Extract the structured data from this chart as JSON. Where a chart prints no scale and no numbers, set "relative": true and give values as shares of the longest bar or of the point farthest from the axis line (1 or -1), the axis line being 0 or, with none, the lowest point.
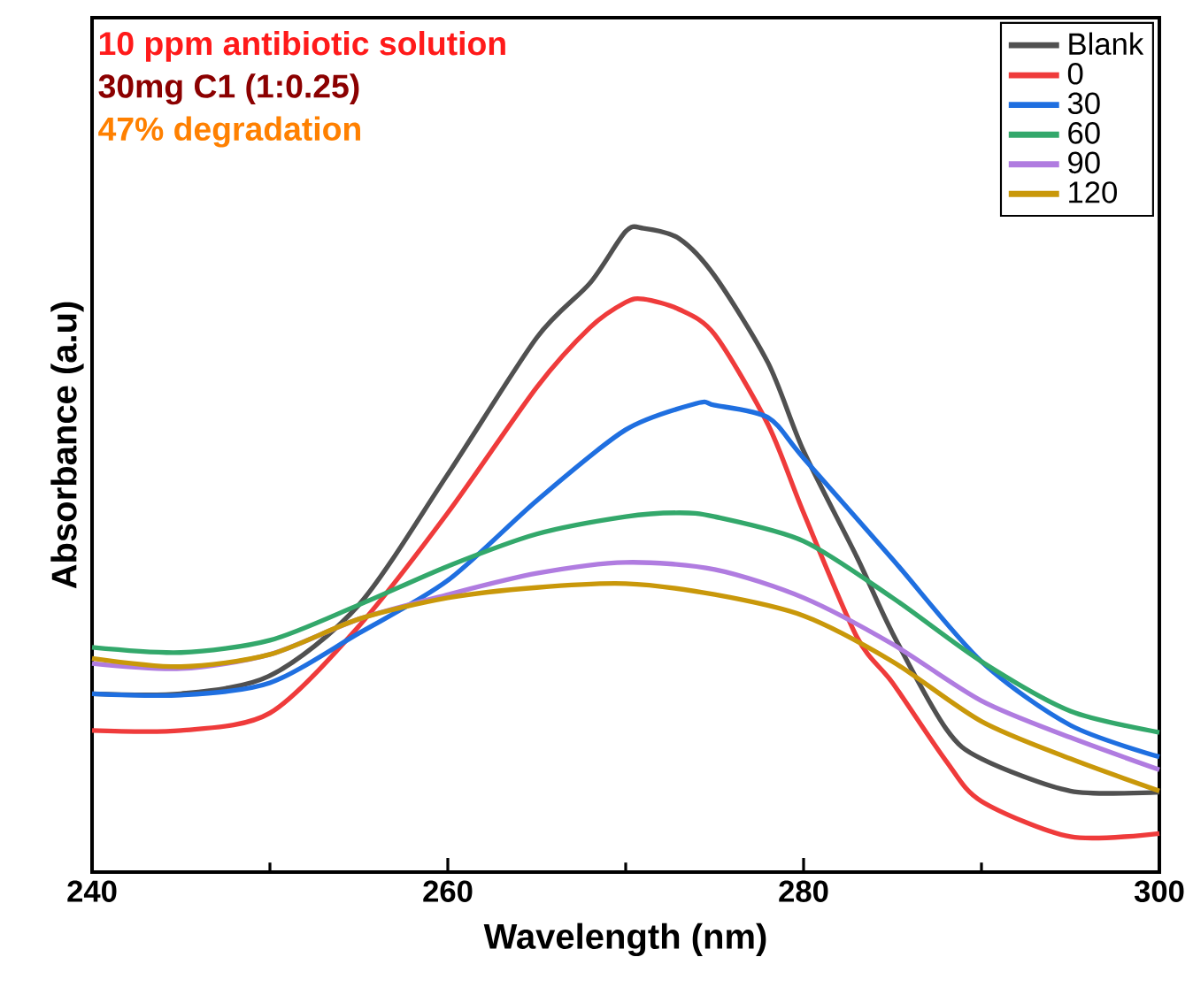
{
  "chart_data": {
    "type": "line",
    "relative": true,
    "xlabel": "Wavelength (nm)",
    "ylabel": "Absorbance (a.u)",
    "annotations": [
      "10 ppm antibiotic solution",
      "30mg C1 (1:0.25)",
      "47% degradation"
    ],
    "xlim": [
      240,
      300
    ],
    "xticks": [
      240,
      {
        "value": 250,
        "label": null
      },
      260,
      {
        "value": 270,
        "label": null
      },
      280,
      {
        "value": 290,
        "label": null
      },
      300
    ],
    "legend": "top right",
    "line_style": "solid",
    "marker": "none",
    "grid": false,
    "series": [
      {
        "name": "Blank",
        "color": "#505050",
        "x": [
          240,
          245,
          250,
          255,
          260,
          265,
          268,
          270,
          271,
          273,
          275,
          278,
          280,
          283,
          285,
          288,
          290,
          295,
          300
        ],
        "values": [
          0.277,
          0.277,
          0.305,
          0.415,
          0.618,
          0.83,
          0.915,
          0.995,
          1.0,
          0.984,
          0.926,
          0.791,
          0.654,
          0.489,
          0.371,
          0.223,
          0.176,
          0.126,
          0.124
        ]
      },
      {
        "name": "0",
        "color": "#ef3b3b",
        "x": [
          240,
          245,
          250,
          255,
          260,
          265,
          268,
          270,
          271,
          273,
          275,
          278,
          280,
          283,
          285,
          288,
          290,
          295,
          300
        ],
        "values": [
          0.22,
          0.22,
          0.247,
          0.382,
          0.558,
          0.753,
          0.846,
          0.885,
          0.89,
          0.874,
          0.835,
          0.695,
          0.558,
          0.365,
          0.294,
          0.173,
          0.11,
          0.055,
          0.06
        ]
      },
      {
        "name": "30",
        "color": "#1f6fe0",
        "x": [
          240,
          245,
          250,
          255,
          260,
          265,
          270,
          274,
          275,
          278,
          280,
          285,
          290,
          295,
          300
        ],
        "values": [
          0.277,
          0.275,
          0.294,
          0.371,
          0.453,
          0.577,
          0.687,
          0.728,
          0.725,
          0.706,
          0.643,
          0.486,
          0.327,
          0.228,
          0.179
        ]
      },
      {
        "name": "60",
        "color": "#33a86b",
        "x": [
          240,
          245,
          250,
          255,
          260,
          265,
          270,
          273,
          275,
          280,
          285,
          290,
          295,
          300
        ],
        "values": [
          0.349,
          0.341,
          0.36,
          0.415,
          0.475,
          0.525,
          0.552,
          0.558,
          0.552,
          0.514,
          0.426,
          0.327,
          0.25,
          0.217
        ]
      },
      {
        "name": "90",
        "color": "#b07ce0",
        "x": [
          240,
          245,
          250,
          255,
          260,
          265,
          270,
          275,
          280,
          285,
          290,
          295,
          300
        ],
        "values": [
          0.324,
          0.316,
          0.338,
          0.393,
          0.431,
          0.464,
          0.481,
          0.47,
          0.426,
          0.354,
          0.266,
          0.209,
          0.159
        ]
      },
      {
        "name": "120",
        "color": "#c9980a",
        "x": [
          240,
          245,
          250,
          255,
          260,
          265,
          270,
          275,
          280,
          285,
          290,
          295,
          300
        ],
        "values": [
          0.332,
          0.319,
          0.338,
          0.393,
          0.426,
          0.442,
          0.448,
          0.431,
          0.398,
          0.327,
          0.234,
          0.176,
          0.126
        ]
      }
    ]
  }
}
